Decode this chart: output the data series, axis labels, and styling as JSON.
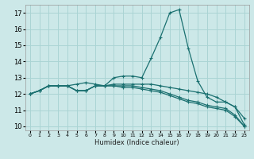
{
  "xlabel": "Humidex (Indice chaleur)",
  "bg_color": "#cce8e8",
  "grid_color": "#aad4d4",
  "line_color": "#1a7070",
  "xlim": [
    -0.5,
    23.5
  ],
  "ylim": [
    9.75,
    17.5
  ],
  "yticks": [
    10,
    11,
    12,
    13,
    14,
    15,
    16,
    17
  ],
  "xticks": [
    0,
    1,
    2,
    3,
    4,
    5,
    6,
    7,
    8,
    9,
    10,
    11,
    12,
    13,
    14,
    15,
    16,
    17,
    18,
    19,
    20,
    21,
    22,
    23
  ],
  "series": [
    [
      12.0,
      12.2,
      12.5,
      12.5,
      12.5,
      12.6,
      12.7,
      12.6,
      12.5,
      13.0,
      13.1,
      13.1,
      13.0,
      14.2,
      15.5,
      17.0,
      17.2,
      14.8,
      12.8,
      11.8,
      11.5,
      11.5,
      11.2,
      10.5
    ],
    [
      12.0,
      12.2,
      12.5,
      12.5,
      12.5,
      12.2,
      12.2,
      12.5,
      12.5,
      12.6,
      12.6,
      12.6,
      12.6,
      12.6,
      12.5,
      12.4,
      12.3,
      12.2,
      12.1,
      12.0,
      11.8,
      11.5,
      11.2,
      10.1
    ],
    [
      12.0,
      12.2,
      12.5,
      12.5,
      12.5,
      12.2,
      12.2,
      12.5,
      12.5,
      12.5,
      12.5,
      12.5,
      12.4,
      12.3,
      12.2,
      12.0,
      11.8,
      11.6,
      11.5,
      11.3,
      11.2,
      11.1,
      10.7,
      10.0
    ],
    [
      12.0,
      12.2,
      12.5,
      12.5,
      12.5,
      12.2,
      12.2,
      12.5,
      12.5,
      12.5,
      12.4,
      12.4,
      12.3,
      12.2,
      12.1,
      11.9,
      11.7,
      11.5,
      11.4,
      11.2,
      11.1,
      11.0,
      10.6,
      10.0
    ]
  ]
}
